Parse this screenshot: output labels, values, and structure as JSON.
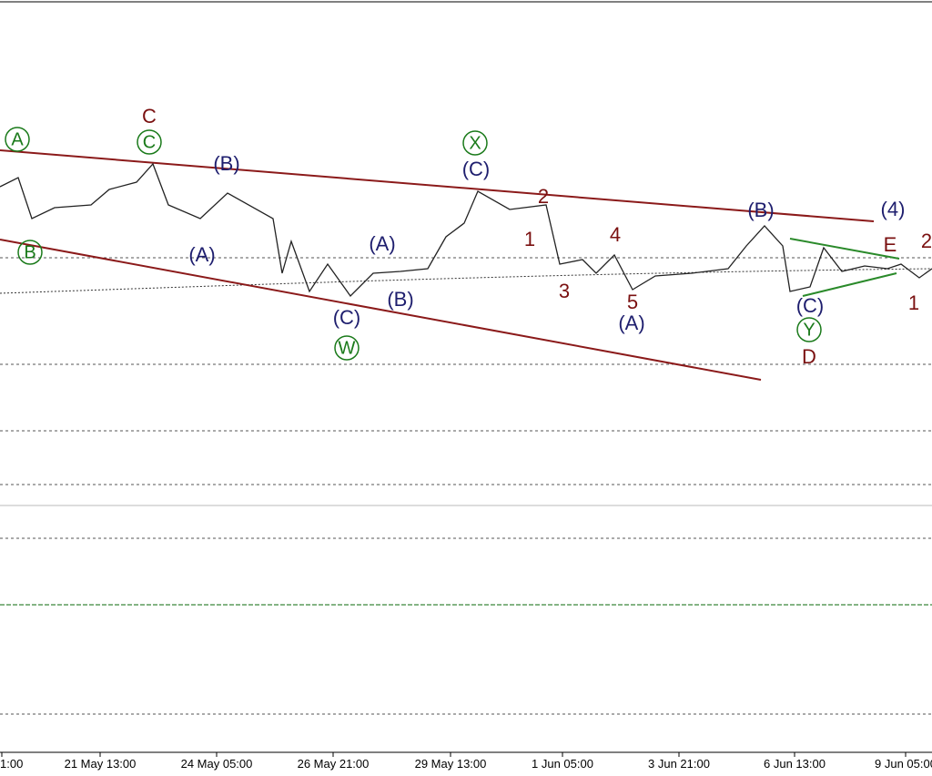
{
  "x_axis": {
    "labels": [
      "1:00",
      "21 May 13:00",
      "24 May 05:00",
      "26 May 21:00",
      "29 May 13:00",
      "1 Jun 05:00",
      "3 Jun 21:00",
      "6 Jun 13:00",
      "9 Jun 05:00"
    ]
  },
  "wave_labels": [
    "A",
    "B",
    "C",
    "W",
    "X",
    "Y",
    "C",
    "2",
    "1",
    "4",
    "3",
    "5",
    "D",
    "E",
    "2",
    "1",
    "(B)",
    "(A)",
    "(A)",
    "(B)",
    "(C)",
    "(C)",
    "(A)",
    "(B)",
    "(C)",
    "(4)"
  ]
}
